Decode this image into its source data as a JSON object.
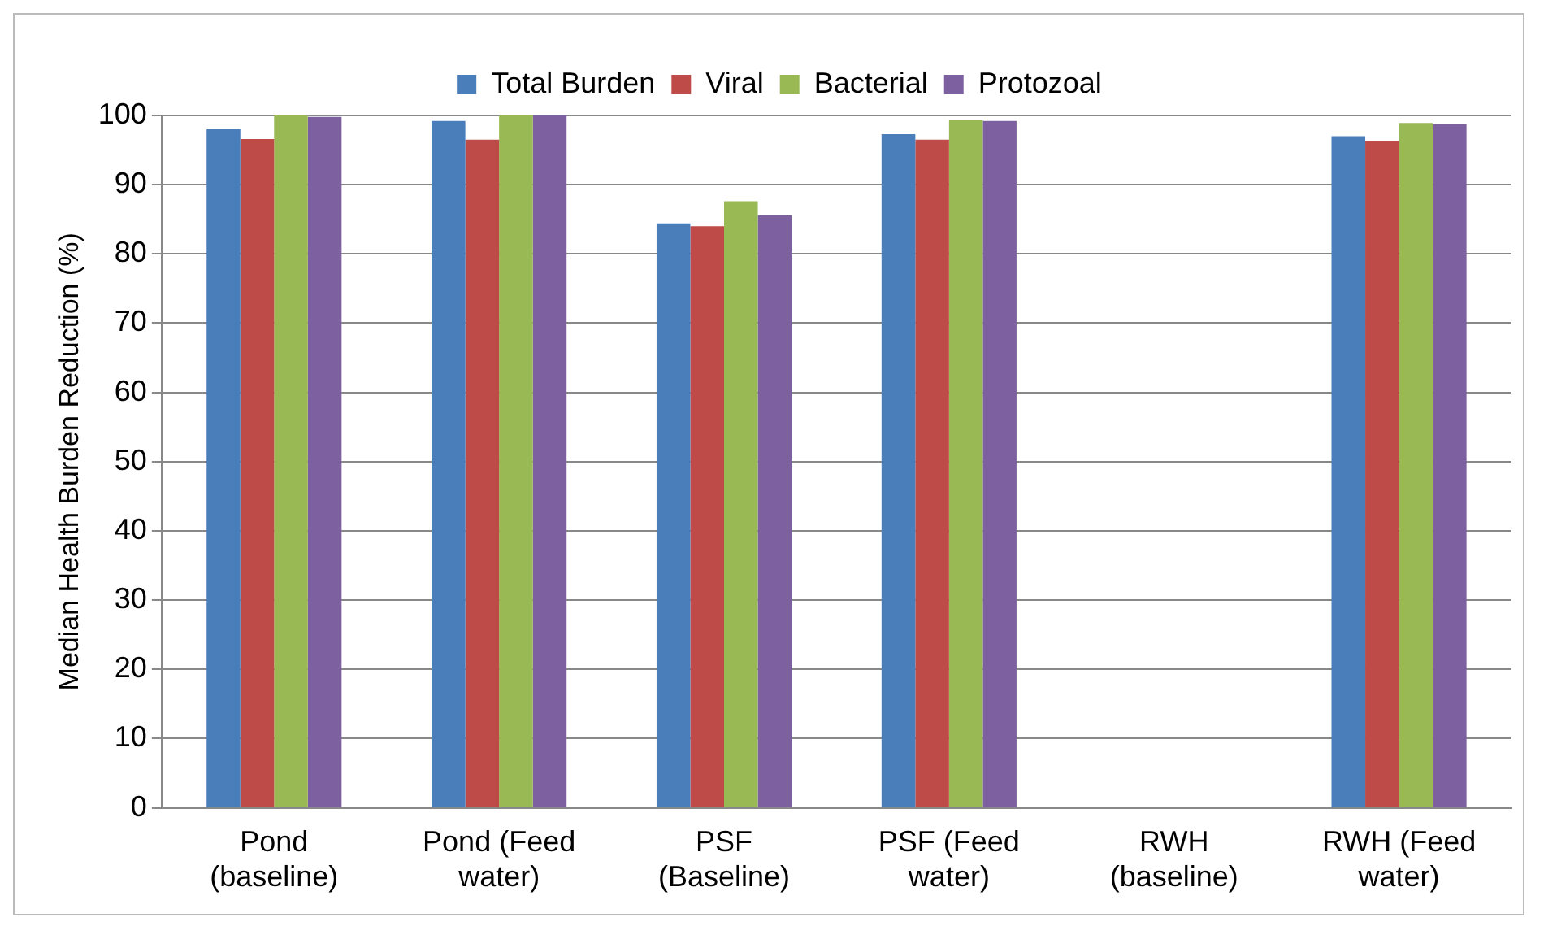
{
  "chart_data": {
    "type": "bar",
    "ylabel": "Median Health Burden Reduction (%)",
    "categories": [
      "Pond\n(baseline)",
      "Pond (Feed\nwater)",
      "PSF\n(Baseline)",
      "PSF (Feed\nwater)",
      "RWH\n(baseline)",
      "RWH (Feed\nwater)"
    ],
    "series": [
      {
        "name": "Total Burden",
        "color": "#4a7ebb",
        "values": [
          98,
          99.2,
          84.4,
          97.3,
          null,
          97
        ]
      },
      {
        "name": "Viral",
        "color": "#be4b48",
        "values": [
          96.6,
          96.5,
          84,
          96.5,
          null,
          96.3
        ]
      },
      {
        "name": "Bacterial",
        "color": "#98b954",
        "values": [
          100,
          100,
          87.6,
          99.3,
          null,
          98.9
        ]
      },
      {
        "name": "Protozoal",
        "color": "#7d60a0",
        "values": [
          99.8,
          100,
          85.6,
          99.2,
          null,
          98.8
        ]
      }
    ],
    "ylim": [
      0,
      100
    ],
    "yticks": [
      0,
      10,
      20,
      30,
      40,
      50,
      60,
      70,
      80,
      90,
      100
    ],
    "grid": "y",
    "legend": "top"
  }
}
